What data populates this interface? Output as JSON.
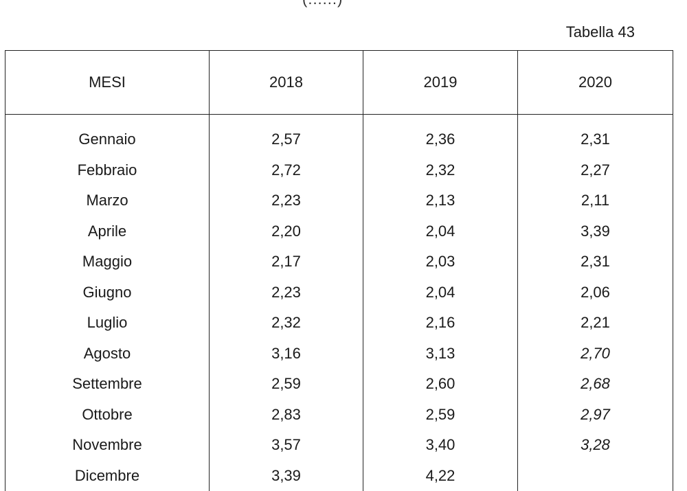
{
  "header": {
    "top_fragment": "(......)",
    "table_label": "Tabella 43"
  },
  "table": {
    "columns": [
      "MESI",
      "2018",
      "2019",
      "2020"
    ],
    "rows": [
      {
        "month": "Gennaio",
        "v2018": "2,57",
        "v2019": "2,36",
        "v2020": "2,31",
        "v2020_italic": false
      },
      {
        "month": "Febbraio",
        "v2018": "2,72",
        "v2019": "2,32",
        "v2020": "2,27",
        "v2020_italic": false
      },
      {
        "month": "Marzo",
        "v2018": "2,23",
        "v2019": "2,13",
        "v2020": "2,11",
        "v2020_italic": false
      },
      {
        "month": "Aprile",
        "v2018": "2,20",
        "v2019": "2,04",
        "v2020": "3,39",
        "v2020_italic": false
      },
      {
        "month": "Maggio",
        "v2018": "2,17",
        "v2019": "2,03",
        "v2020": "2,31",
        "v2020_italic": false
      },
      {
        "month": "Giugno",
        "v2018": "2,23",
        "v2019": "2,04",
        "v2020": "2,06",
        "v2020_italic": false
      },
      {
        "month": "Luglio",
        "v2018": "2,32",
        "v2019": "2,16",
        "v2020": "2,21",
        "v2020_italic": false
      },
      {
        "month": "Agosto",
        "v2018": "3,16",
        "v2019": "3,13",
        "v2020": "2,70",
        "v2020_italic": true
      },
      {
        "month": "Settembre",
        "v2018": "2,59",
        "v2019": "2,60",
        "v2020": "2,68",
        "v2020_italic": true
      },
      {
        "month": "Ottobre",
        "v2018": "2,83",
        "v2019": "2,59",
        "v2020": "2,97",
        "v2020_italic": true
      },
      {
        "month": "Novembre",
        "v2018": "3,57",
        "v2019": "3,40",
        "v2020": "3,28",
        "v2020_italic": true
      },
      {
        "month": "Dicembre",
        "v2018": "3,39",
        "v2019": "4,22",
        "v2020": "",
        "v2020_italic": false
      }
    ]
  }
}
